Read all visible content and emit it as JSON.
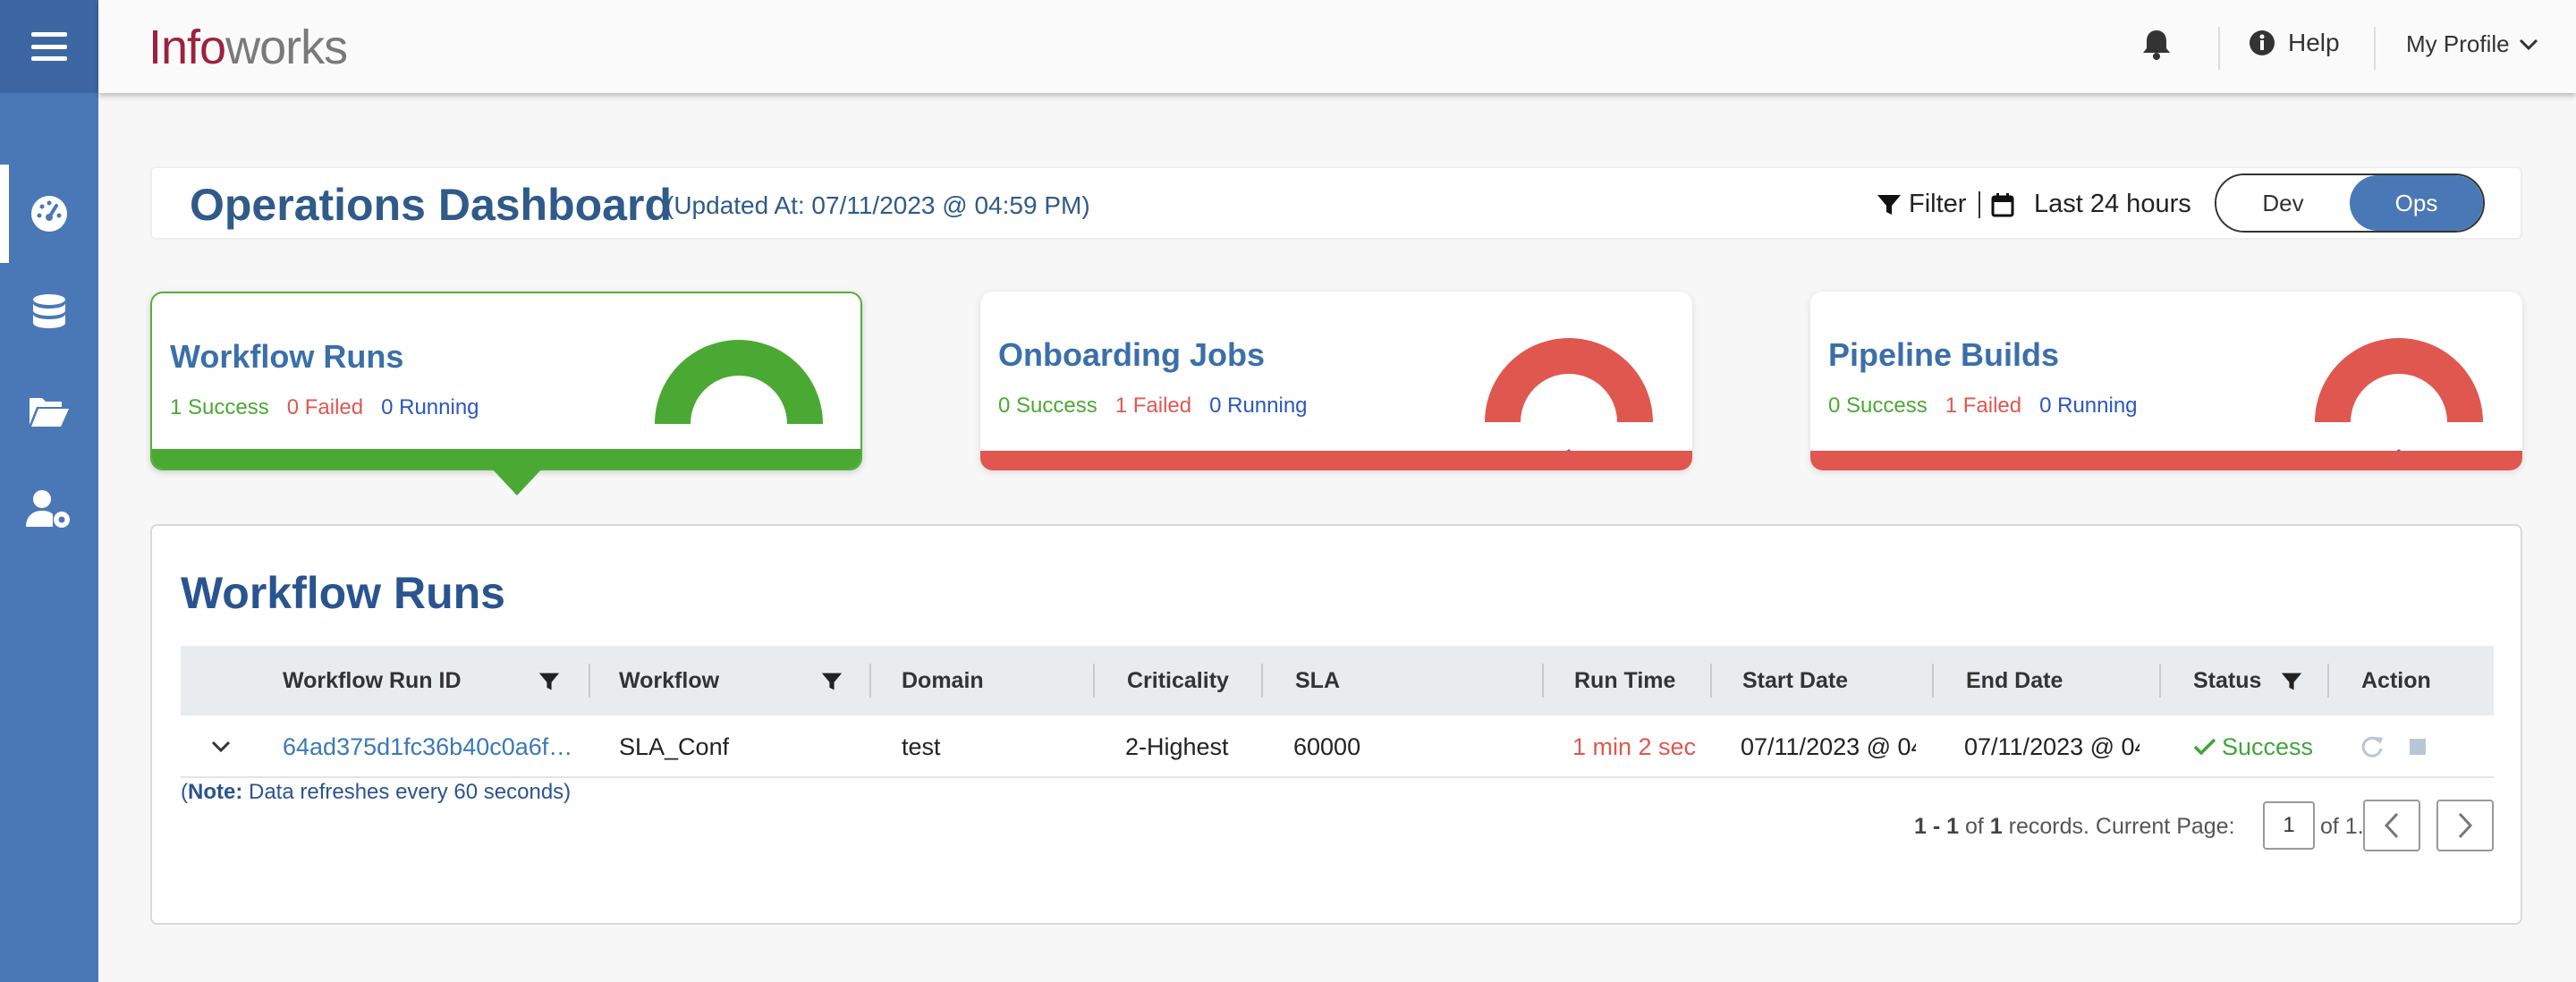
{
  "header": {
    "logo_part1": "Info",
    "logo_part2": "works",
    "help_label": "Help",
    "profile_label": "My Profile"
  },
  "sidebar": {
    "items": [
      {
        "icon": "dashboard-icon",
        "active": true
      },
      {
        "icon": "database-icon",
        "active": false
      },
      {
        "icon": "folder-open-icon",
        "active": false
      },
      {
        "icon": "user-settings-icon",
        "active": false
      }
    ]
  },
  "dashboard": {
    "title": "Operations Dashboard",
    "updated": "(Updated At: 07/11/2023 @ 04:59 PM)",
    "filter_label": "Filter",
    "range_label": "Last 24 hours",
    "toggle": {
      "dev": "Dev",
      "ops": "Ops",
      "selected": "Ops"
    }
  },
  "cards": [
    {
      "title": "Workflow Runs",
      "success": "1 Success",
      "failed": "0 Failed",
      "running": "0 Running",
      "gauge_value": "1",
      "status_color": "#4aa932",
      "selected": true
    },
    {
      "title": "Onboarding Jobs",
      "success": "0 Success",
      "failed": "1 Failed",
      "running": "0 Running",
      "gauge_value": "1",
      "status_color": "#e05750",
      "selected": false
    },
    {
      "title": "Pipeline Builds",
      "success": "0 Success",
      "failed": "1 Failed",
      "running": "0 Running",
      "gauge_value": "1",
      "status_color": "#e05750",
      "selected": false
    }
  ],
  "runs": {
    "title": "Workflow Runs",
    "columns": [
      "Workflow Run ID",
      "Workflow",
      "Domain",
      "Criticality",
      "SLA",
      "Run Time",
      "Start Date",
      "End Date",
      "Status",
      "Action"
    ],
    "rows": [
      {
        "run_id": "64ad375d1fc36b40c0a6f…",
        "workflow": "SLA_Conf",
        "domain": "test",
        "criticality": "2-Highest",
        "sla": "60000",
        "run_time": "1 min 2 sec",
        "start_date": "07/11/2023 @ 04",
        "end_date": "07/11/2023 @ 04",
        "status": "Success"
      }
    ],
    "note_label": "Note:",
    "note_text": " Data refreshes every 60 seconds)",
    "note_open": "(",
    "pager": {
      "range": "1 - 1",
      "of_word": " of ",
      "total": "1",
      "suffix": " records. Current Page:",
      "current_page": "1",
      "of_pages": "of 1."
    }
  },
  "colors": {
    "sidebar": "#4a78b6",
    "success": "#4aa932",
    "failed": "#e05750",
    "running": "#2c55c4",
    "title": "#2f5a8a"
  }
}
